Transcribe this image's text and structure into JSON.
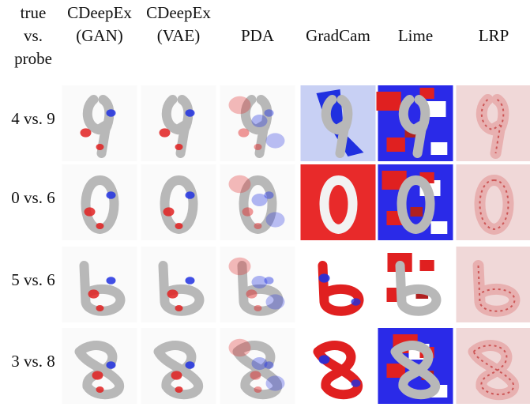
{
  "header": {
    "corner": [
      "true",
      "vs.",
      "probe"
    ],
    "columns": [
      [
        "CDeepEx",
        "(GAN)"
      ],
      [
        "CDeepEx",
        "(VAE)"
      ],
      [
        "PDA"
      ],
      [
        "GradCam"
      ],
      [
        "Lime"
      ],
      [
        "LRP"
      ]
    ]
  },
  "rows": [
    {
      "label": "4 vs. 9"
    },
    {
      "label": "0 vs. 6"
    },
    {
      "label": "5 vs. 6"
    },
    {
      "label": "3 vs. 8"
    }
  ]
}
